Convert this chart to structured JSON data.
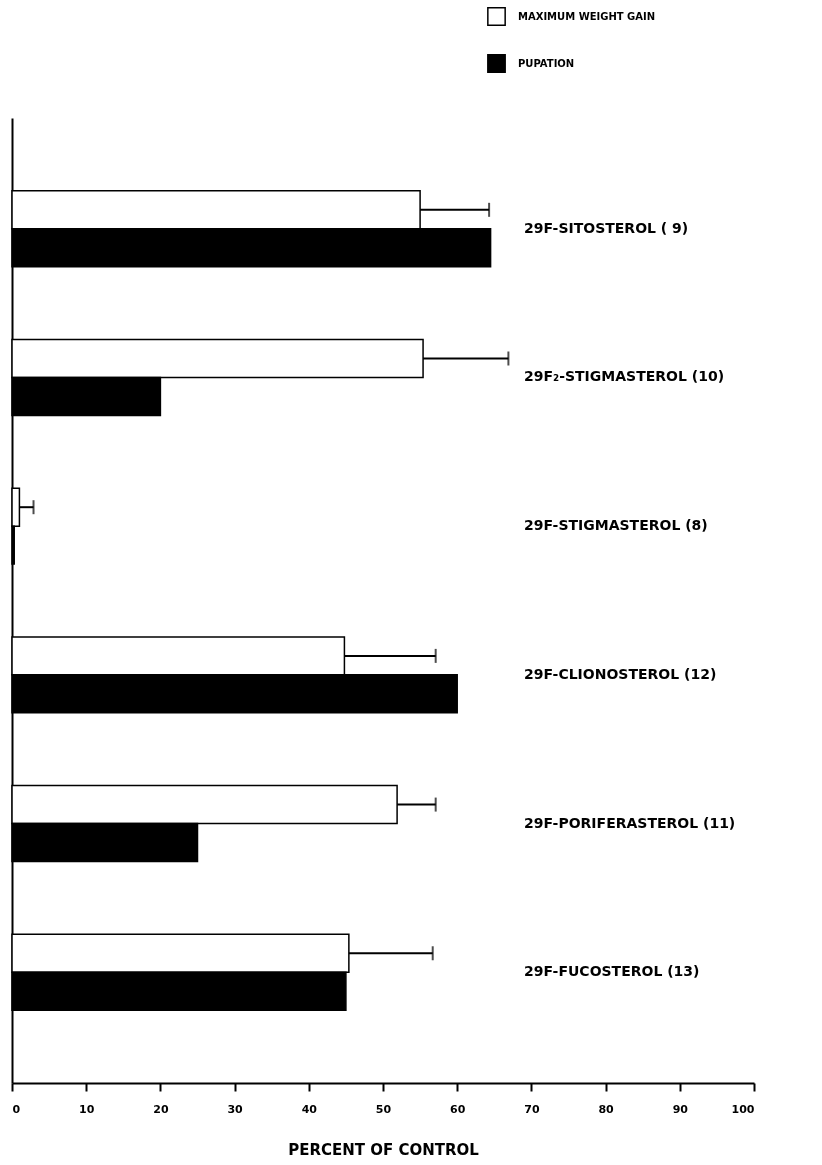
{
  "chart_data": {
    "type": "bar",
    "orientation": "horizontal",
    "xlabel": "PERCENT OF CONTROL",
    "categories": [
      "29F-SITOSTEROL ( 9)",
      "29F₂-STIGMASTEROL (10)",
      "29F-STIGMASTEROL (8)",
      "29F-CLIONOSTEROL (12)",
      "29F-PORIFERASTEROL (11)",
      "29F-FUCOSTEROL (13)"
    ],
    "series": [
      {
        "name": "MAXIMUM WEIGHT GAIN",
        "color": "#ffffff",
        "values": [
          55,
          55.4,
          1,
          44.8,
          51.9,
          45.4
        ],
        "errors": [
          [
            55,
            64.3
          ],
          [
            55.4,
            66.9
          ],
          [
            1,
            2.9
          ],
          [
            44.8,
            57.1
          ],
          [
            51.9,
            57.1
          ],
          [
            45.4,
            56.7
          ]
        ]
      },
      {
        "name": "PUPATION",
        "color": "#000000",
        "values": [
          64.5,
          20,
          0.3,
          60,
          25,
          45
        ]
      }
    ],
    "xlim": [
      0,
      100
    ],
    "xticks": [
      0,
      10,
      20,
      30,
      40,
      50,
      60,
      70,
      80,
      90,
      100
    ],
    "grid": false,
    "legend": "top right"
  }
}
